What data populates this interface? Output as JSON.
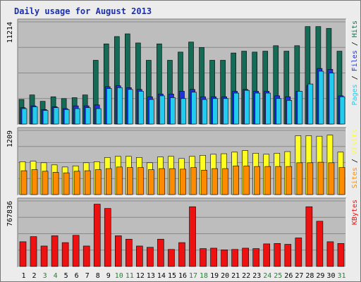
{
  "title": "Daily usage for August 2013",
  "colors": {
    "hits": "#156b55",
    "files": "#2233dd",
    "pages": "#22ccee",
    "visits": "#ffff22",
    "sites": "#ff8c00",
    "kbytes": "#ee1111",
    "weekend_label": "#1a8a2a"
  },
  "chart_data": [
    {
      "type": "bar",
      "categories": [
        "1",
        "2",
        "3",
        "4",
        "5",
        "6",
        "7",
        "8",
        "9",
        "10",
        "11",
        "12",
        "13",
        "14",
        "15",
        "16",
        "17",
        "18",
        "19",
        "20",
        "21",
        "22",
        "23",
        "24",
        "25",
        "26",
        "27",
        "28",
        "29",
        "30",
        "31"
      ],
      "weekend_days": [
        "3",
        "4",
        "10",
        "11",
        "17",
        "18",
        "24",
        "25",
        "31"
      ],
      "max_label": "11214",
      "ylim": [
        0,
        11214
      ],
      "legend": [
        {
          "text": "Pages",
          "color": "#22ccee"
        },
        {
          "text": "Files",
          "color": "#2233dd"
        },
        {
          "text": "Hits",
          "color": "#156b55"
        }
      ],
      "series": [
        {
          "name": "Hits",
          "values": [
            2700,
            3200,
            2500,
            3000,
            2800,
            2900,
            3200,
            7000,
            8800,
            9600,
            9900,
            8900,
            7000,
            8800,
            7000,
            7900,
            9000,
            8400,
            7000,
            7000,
            7800,
            8000,
            7900,
            8000,
            8600,
            8000,
            8600,
            10700,
            10700,
            10500,
            8000
          ]
        },
        {
          "name": "Files",
          "values": [
            1800,
            2000,
            1600,
            1900,
            1700,
            2000,
            2000,
            2100,
            4100,
            4200,
            4000,
            3800,
            3000,
            3300,
            3300,
            3600,
            3800,
            3000,
            3000,
            3000,
            3600,
            3800,
            3600,
            3600,
            3100,
            3000,
            3600,
            4200,
            6100,
            6000,
            3100
          ]
        },
        {
          "name": "Pages",
          "values": [
            1700,
            1900,
            1500,
            1800,
            1600,
            1700,
            1800,
            1700,
            3900,
            4000,
            3800,
            3600,
            2700,
            3100,
            2900,
            2800,
            3500,
            2700,
            2800,
            2800,
            3400,
            3700,
            3400,
            3400,
            2800,
            2600,
            3600,
            4400,
            5800,
            5600,
            3000
          ]
        }
      ]
    },
    {
      "type": "bar",
      "categories": [
        "1",
        "2",
        "3",
        "4",
        "5",
        "6",
        "7",
        "8",
        "9",
        "10",
        "11",
        "12",
        "13",
        "14",
        "15",
        "16",
        "17",
        "18",
        "19",
        "20",
        "21",
        "22",
        "23",
        "24",
        "25",
        "26",
        "27",
        "28",
        "29",
        "30",
        "31"
      ],
      "max_label": "1209",
      "ylim": [
        0,
        1209
      ],
      "legend": [
        {
          "text": "Sites",
          "color": "#ff8c00"
        },
        {
          "text": "Visits",
          "color": "#ffff22"
        }
      ],
      "series": [
        {
          "name": "Visits",
          "values": [
            620,
            630,
            600,
            560,
            520,
            540,
            600,
            620,
            700,
            720,
            720,
            700,
            600,
            710,
            720,
            680,
            720,
            740,
            760,
            770,
            800,
            830,
            780,
            760,
            780,
            810,
            1110,
            1110,
            1100,
            1120,
            800
          ]
        },
        {
          "name": "Sites",
          "values": [
            450,
            470,
            440,
            420,
            410,
            440,
            450,
            470,
            490,
            520,
            510,
            510,
            470,
            490,
            490,
            480,
            510,
            460,
            490,
            490,
            540,
            540,
            530,
            530,
            530,
            530,
            600,
            600,
            610,
            600,
            510
          ]
        }
      ]
    },
    {
      "type": "bar",
      "categories": [
        "1",
        "2",
        "3",
        "4",
        "5",
        "6",
        "7",
        "8",
        "9",
        "10",
        "11",
        "12",
        "13",
        "14",
        "15",
        "16",
        "17",
        "18",
        "19",
        "20",
        "21",
        "22",
        "23",
        "24",
        "25",
        "26",
        "27",
        "28",
        "29",
        "30",
        "31"
      ],
      "max_label": "767836",
      "ylim": [
        0,
        767836
      ],
      "legend": [
        {
          "text": "KBytes",
          "color": "#ee1111"
        }
      ],
      "series": [
        {
          "name": "KBytes",
          "values": [
            290000,
            350000,
            240000,
            360000,
            280000,
            365000,
            240000,
            730000,
            680000,
            360000,
            320000,
            240000,
            225000,
            320000,
            200000,
            280000,
            700000,
            210000,
            215000,
            195000,
            200000,
            215000,
            210000,
            265000,
            270000,
            260000,
            335000,
            700000,
            530000,
            290000,
            270000
          ]
        }
      ]
    }
  ]
}
